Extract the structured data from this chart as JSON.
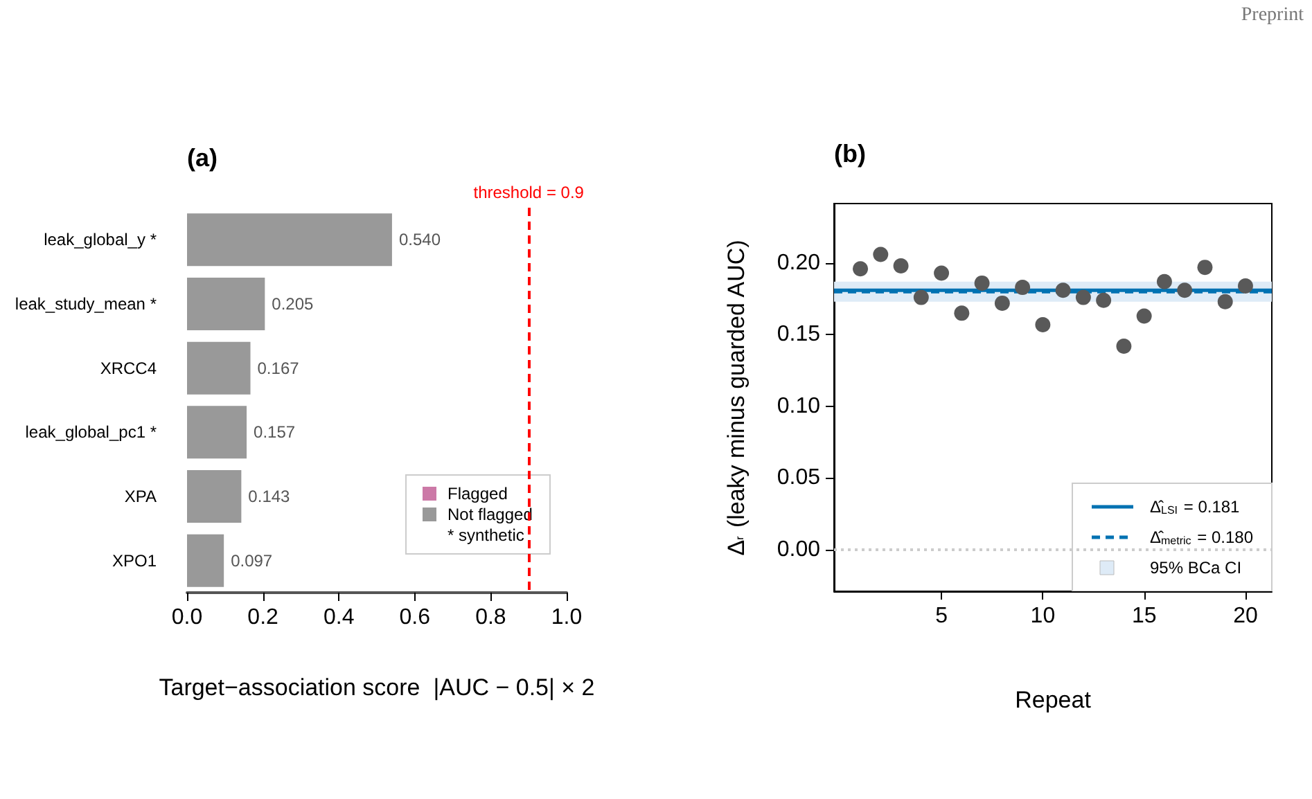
{
  "chart_data": [
    {
      "type": "bar",
      "orientation": "horizontal",
      "title": "(a)",
      "xlabel": "Target−association score  |AUC − 0.5| × 2",
      "categories": [
        "leak_global_y *",
        "leak_study_mean *",
        "XRCC4",
        "leak_global_pc1 *",
        "XPA",
        "XPO1"
      ],
      "series": [
        {
          "name": "Flagged",
          "color": "#cc79a7",
          "values": [
            null,
            null,
            null,
            null,
            null,
            null
          ]
        },
        {
          "name": "Not flagged",
          "color": "#999999",
          "values": [
            0.54,
            0.205,
            0.167,
            0.157,
            0.143,
            0.097
          ],
          "value_labels": [
            "0.540",
            "0.205",
            "0.167",
            "0.157",
            "0.143",
            "0.097"
          ]
        }
      ],
      "xlim": [
        0,
        1
      ],
      "xticks": [
        {
          "value": 0,
          "label": "0.0"
        },
        {
          "value": 0.2,
          "label": "0.2"
        },
        {
          "value": 0.4,
          "label": "0.4"
        },
        {
          "value": 0.6,
          "label": "0.6"
        },
        {
          "value": 0.8,
          "label": "0.8"
        },
        {
          "value": 1,
          "label": "1.0"
        }
      ],
      "ref_lines": [
        {
          "axis": "x",
          "value": 0.9,
          "label": "threshold = 0.9",
          "color": "#ff0000",
          "line_style": "dashed"
        }
      ],
      "legend": "bottom right",
      "annotations": [
        "* synthetic"
      ]
    },
    {
      "type": "scatter",
      "title": "(b)",
      "xlabel": "Repeat",
      "ylabel": "Δ$_{r}$ (leaky minus guarded AUC)",
      "marker": "circle",
      "series": [
        {
          "color": "#595959",
          "x": [
            1,
            2,
            3,
            4,
            5,
            6,
            7,
            8,
            9,
            10,
            11,
            12,
            13,
            14,
            15,
            16,
            17,
            18,
            19,
            20
          ],
          "values": [
            0.196,
            0.206,
            0.198,
            0.176,
            0.193,
            0.165,
            0.186,
            0.172,
            0.183,
            0.157,
            0.181,
            0.176,
            0.174,
            0.142,
            0.163,
            0.187,
            0.181,
            0.197,
            0.173,
            0.184
          ]
        },
        {
          "type": "line",
          "name": "Δ̂$_{LSI}$ = 0.181",
          "color": "#0072b2",
          "line_style": "solid",
          "marker": "none",
          "x": [
            -0.3,
            21.3
          ],
          "values": [
            0.181,
            0.181
          ]
        },
        {
          "type": "line",
          "name": "Δ̂$_{metric}$ = 0.180",
          "color": "#0072b2",
          "line_style": "dashed",
          "marker": "none",
          "x": [
            -0.3,
            21.3
          ],
          "values": [
            0.18,
            0.18
          ]
        }
      ],
      "xlim": [
        -0.3,
        21.3
      ],
      "xticks": [
        5,
        10,
        15,
        20
      ],
      "ylim": [
        -0.029,
        0.2415
      ],
      "yticks": [
        {
          "value": 0,
          "label": "0.00"
        },
        {
          "value": 0.05,
          "label": "0.05"
        },
        {
          "value": 0.1,
          "label": "0.10"
        },
        {
          "value": 0.15,
          "label": "0.15"
        },
        {
          "value": 0.2,
          "label": "0.20"
        }
      ],
      "ref_lines": [
        {
          "axis": "y",
          "value": 0,
          "color": "#cccccc",
          "line_style": "dotted"
        }
      ],
      "bands": [
        {
          "axis": "y",
          "from": 0.173,
          "to": 0.187,
          "label": "95% BCa CI",
          "color": "#deebf7"
        }
      ],
      "legend": "bottom right",
      "annotations": [
        "Preprint"
      ]
    }
  ]
}
